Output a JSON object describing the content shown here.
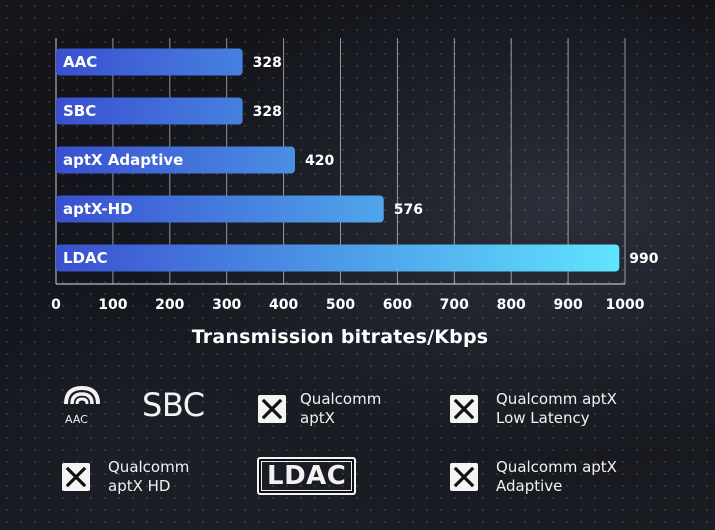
{
  "chart_data": {
    "type": "bar",
    "orientation": "horizontal",
    "categories": [
      "AAC",
      "SBC",
      "aptX Adaptive",
      "aptX-HD",
      "LDAC"
    ],
    "values": [
      328,
      328,
      420,
      576,
      990
    ],
    "xlabel": "Transmission bitrates/Kbps",
    "xlim": [
      0,
      1000
    ],
    "xticks": [
      0,
      100,
      200,
      300,
      400,
      500,
      600,
      700,
      800,
      900,
      1000
    ],
    "grid": true,
    "colors": {
      "bar_start": "#3a4fd0",
      "bar_end": "#60e6ff"
    }
  },
  "logos": {
    "aac": {
      "text": "AAC"
    },
    "sbc": {
      "text": "SBC"
    },
    "aptx": {
      "line1": "Qualcomm",
      "line2": "aptX"
    },
    "aptx_ll": {
      "line1": "Qualcomm aptX",
      "line2": "Low Latency"
    },
    "aptx_hd": {
      "line1": "Qualcomm",
      "line2": "aptX HD"
    },
    "ldac": {
      "text": "LDAC"
    },
    "aptx_adaptive": {
      "line1": "Qualcomm aptX",
      "line2": "Adaptive"
    }
  }
}
